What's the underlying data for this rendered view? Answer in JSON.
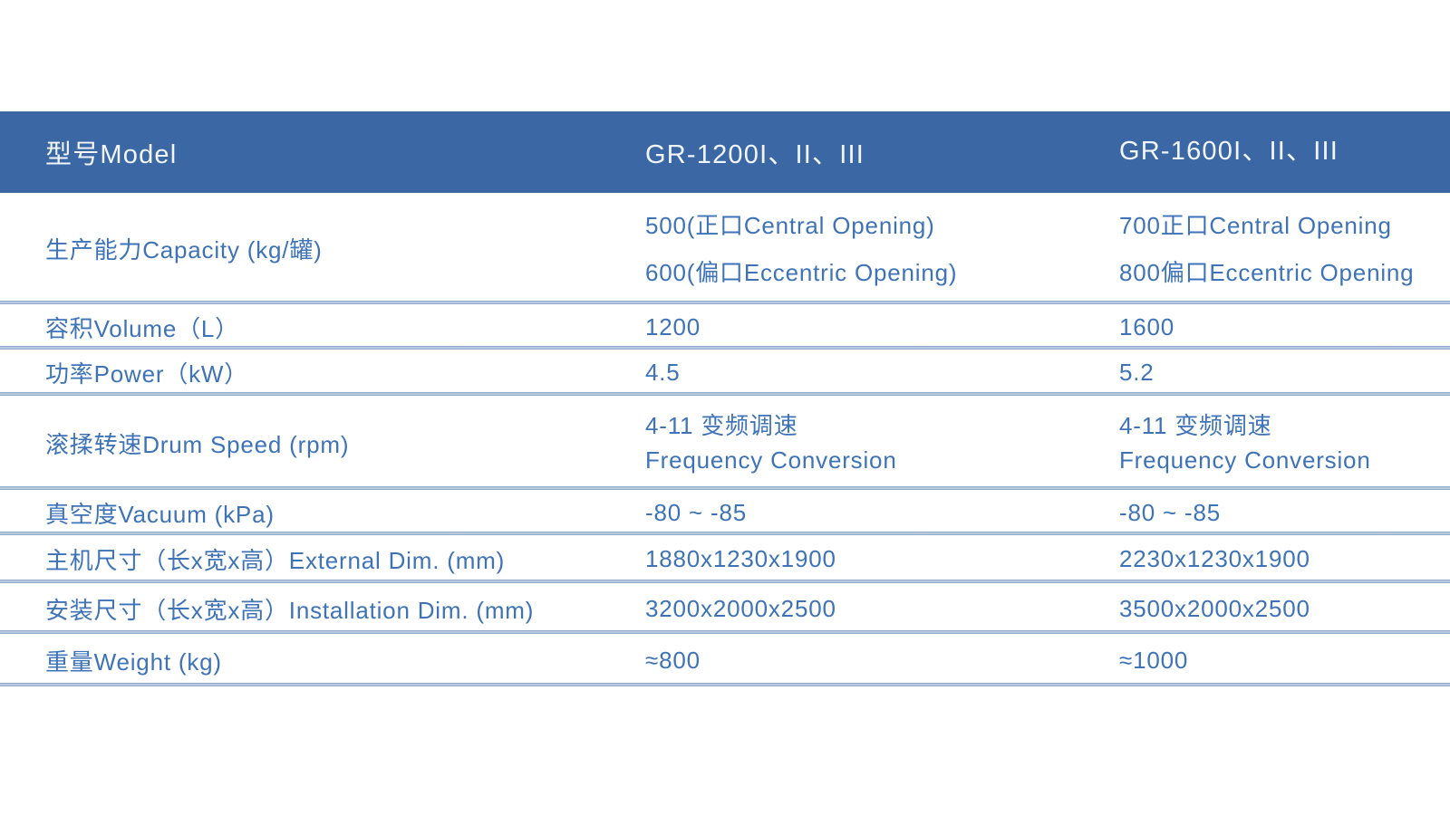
{
  "colors": {
    "header_bg": "#3b68a4",
    "header_text": "#f2f6fb",
    "body_text": "#3e73b8",
    "divider": "#7f9ac2"
  },
  "table": {
    "header": {
      "model_label": "型号Model",
      "columns": [
        "GR-1200I、II、III",
        "GR-1600I、II、III"
      ]
    },
    "rows": [
      {
        "label": "生产能力Capacity (kg/罐)",
        "cells": [
          {
            "lines": [
              "500(正口Central Opening)",
              "600(偏口Eccentric Opening)"
            ]
          },
          {
            "lines": [
              "700正口Central Opening",
              "800偏口Eccentric Opening"
            ]
          }
        ]
      },
      {
        "label": "容积Volume（L）",
        "cells": [
          {
            "lines": [
              "1200"
            ]
          },
          {
            "lines": [
              "1600"
            ]
          }
        ]
      },
      {
        "label": "功率Power（kW）",
        "cells": [
          {
            "lines": [
              "4.5"
            ]
          },
          {
            "lines": [
              "5.2"
            ]
          }
        ]
      },
      {
        "label": "滚揉转速Drum Speed (rpm)",
        "cells": [
          {
            "lines": [
              "4-11 变频调速",
              "Frequency Conversion"
            ]
          },
          {
            "lines": [
              "4-11 变频调速",
              "Frequency Conversion"
            ]
          }
        ]
      },
      {
        "label": "真空度Vacuum (kPa)",
        "cells": [
          {
            "lines": [
              "-80 ~ -85"
            ]
          },
          {
            "lines": [
              "-80 ~ -85"
            ]
          }
        ]
      },
      {
        "label": "主机尺寸（长x宽x高）External Dim. (mm)",
        "cells": [
          {
            "lines": [
              "1880x1230x1900"
            ]
          },
          {
            "lines": [
              "2230x1230x1900"
            ]
          }
        ]
      },
      {
        "label": "安装尺寸（长x宽x高）Installation Dim. (mm)",
        "cells": [
          {
            "lines": [
              "3200x2000x2500"
            ]
          },
          {
            "lines": [
              "3500x2000x2500"
            ]
          }
        ]
      },
      {
        "label": "重量Weight (kg)",
        "cells": [
          {
            "lines": [
              "≈800"
            ]
          },
          {
            "lines": [
              "≈1000"
            ]
          }
        ]
      }
    ]
  }
}
